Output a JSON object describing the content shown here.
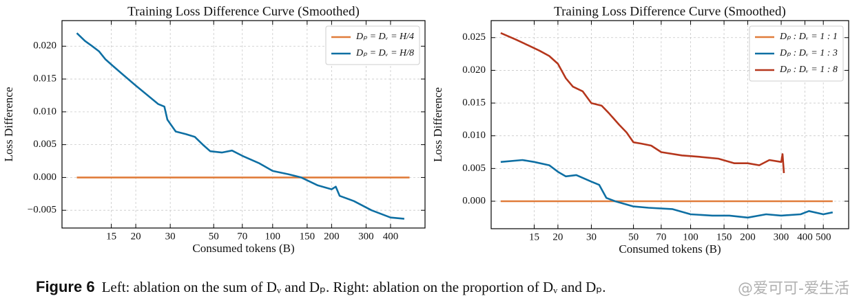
{
  "chart_data": [
    {
      "type": "line",
      "title": "Training Loss Difference Curve (Smoothed)",
      "xlabel": "Consumed tokens (B)",
      "ylabel": "Loss Difference",
      "xscale": "log",
      "grid": true,
      "legend": "upper right",
      "xlim": [
        8.4,
        600
      ],
      "xticks": [
        15,
        20,
        30,
        50,
        70,
        100,
        150,
        200,
        300,
        400
      ],
      "ylim": [
        -0.0077,
        0.0239
      ],
      "yticks": [
        {
          "value": -0.005,
          "label": "−0.005"
        },
        {
          "value": 0,
          "label": "0.000"
        },
        {
          "value": 0.005,
          "label": "0.005"
        },
        {
          "value": 0.01,
          "label": "0.010"
        },
        {
          "value": 0.015,
          "label": "0.015"
        },
        {
          "value": 0.02,
          "label": "0.020"
        }
      ],
      "series": [
        {
          "name": "Dₚ = Dᵥ = H/4",
          "color": "#e07b39",
          "x": [
            10,
            500
          ],
          "values": [
            0,
            0
          ]
        },
        {
          "name": "Dₚ = Dᵥ = H/8",
          "color": "#0e6fa3",
          "x": [
            10,
            11,
            12,
            13,
            14,
            15,
            17,
            20,
            23,
            26,
            28,
            29,
            32,
            36,
            40,
            44,
            48,
            55,
            62,
            70,
            85,
            100,
            120,
            140,
            170,
            200,
            210,
            220,
            260,
            320,
            400,
            470
          ],
          "values": [
            0.022,
            0.0208,
            0.02,
            0.0192,
            0.018,
            0.0172,
            0.0158,
            0.014,
            0.0125,
            0.0112,
            0.0108,
            0.0088,
            0.007,
            0.0066,
            0.0062,
            0.005,
            0.004,
            0.0038,
            0.0041,
            0.0033,
            0.0022,
            0.001,
            0.0005,
            0.0,
            -0.0012,
            -0.0018,
            -0.0014,
            -0.0028,
            -0.0036,
            -0.005,
            -0.0061,
            -0.0063
          ]
        }
      ]
    },
    {
      "type": "line",
      "title": "Training Loss Difference Curve (Smoothed)",
      "xlabel": "Consumed tokens (B)",
      "ylabel": "Loss Difference",
      "xscale": "log",
      "grid": true,
      "legend": "upper right",
      "xlim": [
        8.9,
        680
      ],
      "xticks": [
        15,
        20,
        30,
        50,
        70,
        100,
        150,
        200,
        300,
        400,
        500
      ],
      "ylim": [
        -0.0042,
        0.0276
      ],
      "yticks": [
        {
          "value": 0,
          "label": "0.000"
        },
        {
          "value": 0.005,
          "label": "0.005"
        },
        {
          "value": 0.01,
          "label": "0.010"
        },
        {
          "value": 0.015,
          "label": "0.015"
        },
        {
          "value": 0.02,
          "label": "0.020"
        },
        {
          "value": 0.025,
          "label": "0.025"
        }
      ],
      "series": [
        {
          "name": "Dₚ : Dᵥ = 1 : 1",
          "color": "#e07b39",
          "x": [
            10,
            560
          ],
          "values": [
            0,
            0
          ]
        },
        {
          "name": "Dₚ : Dᵥ = 1 : 3",
          "color": "#0e6fa3",
          "x": [
            10,
            13,
            15,
            18,
            20,
            22,
            25,
            30,
            33,
            36,
            40,
            50,
            60,
            80,
            100,
            130,
            160,
            200,
            250,
            300,
            380,
            420,
            500,
            560
          ],
          "values": [
            0.006,
            0.0063,
            0.006,
            0.0055,
            0.0045,
            0.0038,
            0.004,
            0.003,
            0.0025,
            0.0005,
            0.0,
            -0.0008,
            -0.001,
            -0.0012,
            -0.002,
            -0.0022,
            -0.0022,
            -0.0025,
            -0.002,
            -0.0022,
            -0.002,
            -0.0015,
            -0.002,
            -0.0017
          ]
        },
        {
          "name": "Dₚ : Dᵥ = 1 : 8",
          "color": "#b5361c",
          "x": [
            10,
            12,
            14,
            16,
            18,
            20,
            22,
            24,
            27,
            30,
            34,
            37,
            42,
            46,
            50,
            55,
            62,
            70,
            90,
            110,
            140,
            170,
            200,
            230,
            260,
            300,
            305,
            310
          ],
          "values": [
            0.0257,
            0.0247,
            0.0238,
            0.023,
            0.0222,
            0.021,
            0.0188,
            0.0175,
            0.0168,
            0.015,
            0.0146,
            0.0135,
            0.0117,
            0.0105,
            0.009,
            0.0088,
            0.0085,
            0.0075,
            0.007,
            0.0068,
            0.0065,
            0.0058,
            0.0058,
            0.0055,
            0.0063,
            0.006,
            0.0072,
            0.0043
          ]
        }
      ]
    }
  ],
  "caption": {
    "label": "Figure 6",
    "text": "Left: ablation on the sum of Dᵥ and Dₚ. Right: ablation on the proportion of Dᵥ and Dₚ."
  },
  "watermark": "@爱可可-爱生活"
}
